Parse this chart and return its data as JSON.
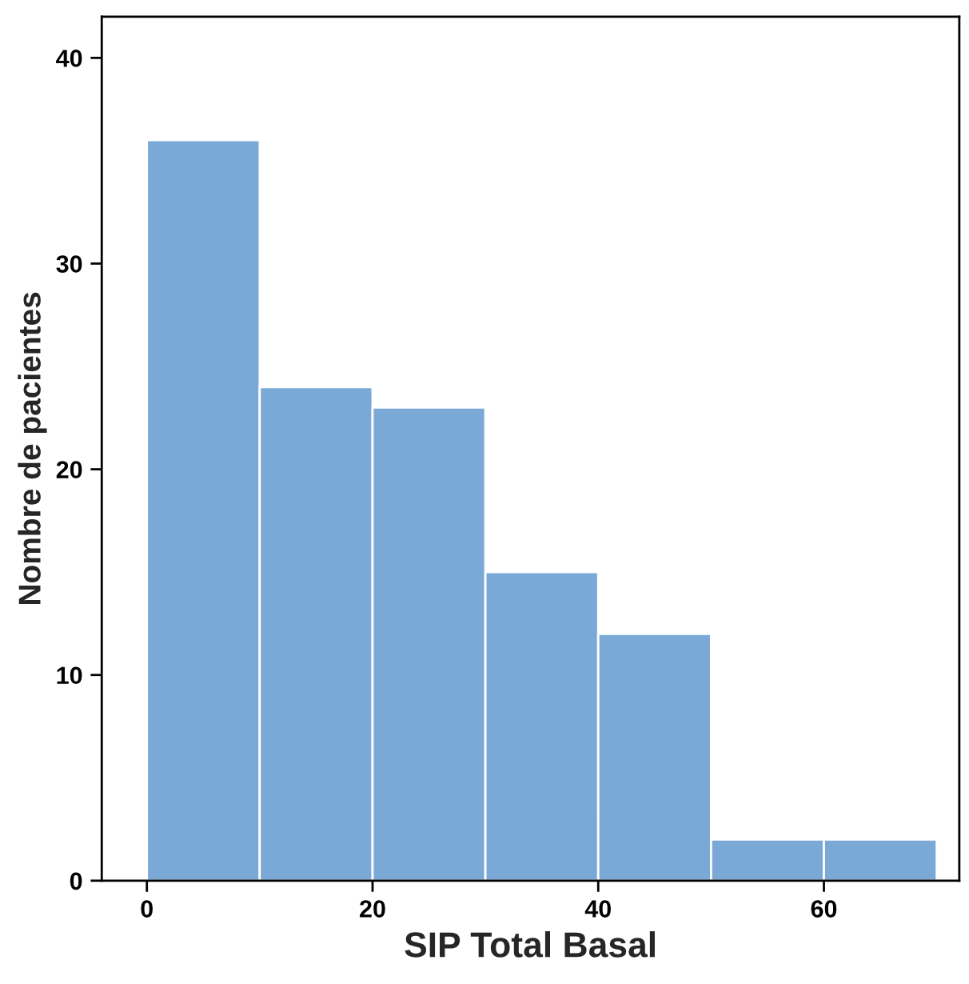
{
  "chart_data": {
    "type": "histogram",
    "xlabel": "SIP Total Basal",
    "ylabel": "Nombre de pacientes",
    "bins": [
      0,
      10,
      20,
      30,
      40,
      50,
      60,
      70
    ],
    "values": [
      36,
      24,
      23,
      15,
      12,
      2,
      2
    ],
    "color": "#7ba9d7",
    "xlim": [
      -4,
      72
    ],
    "ylim": [
      0,
      42
    ],
    "xticks": [
      0,
      20,
      40,
      60
    ],
    "yticks": [
      0,
      10,
      20,
      30,
      40
    ],
    "grid": false
  }
}
